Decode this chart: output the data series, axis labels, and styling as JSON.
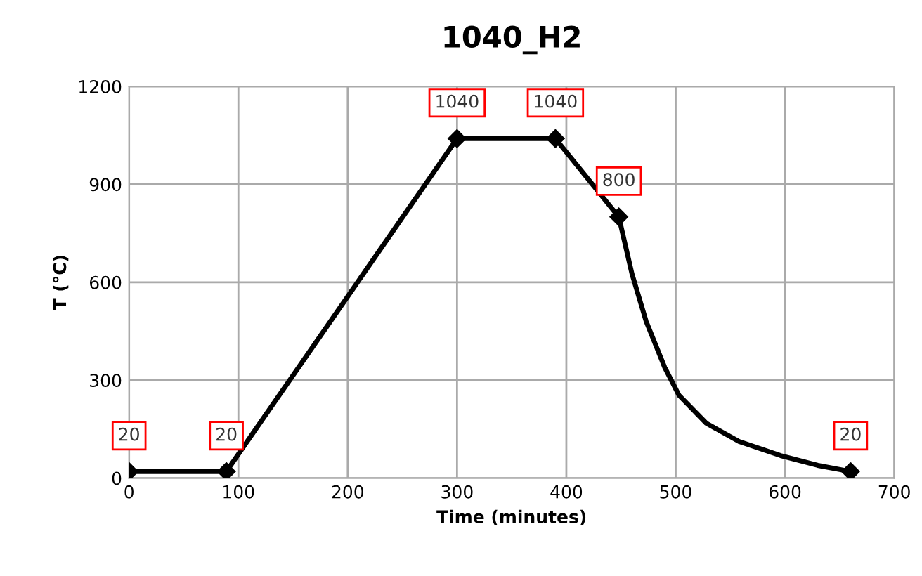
{
  "chart_data": {
    "type": "line",
    "title": "1040_H2",
    "xlabel": "Time (minutes)",
    "ylabel": "T (°C)",
    "xlim": [
      0,
      700
    ],
    "xticks": [
      0,
      100,
      200,
      300,
      400,
      500,
      600,
      700
    ],
    "ylim": [
      0,
      1200
    ],
    "yticks": [
      0,
      300,
      600,
      900,
      1200
    ],
    "grid": true,
    "marker": "diamond",
    "line_style": "solid",
    "series": [
      {
        "color": "#000000",
        "x": [
          0,
          89,
          300,
          390,
          448
        ],
        "values": [
          20,
          20,
          1040,
          1040,
          800
        ],
        "value_labels": [
          "20",
          "20",
          "1040",
          "1040",
          "800"
        ]
      },
      {
        "color": "#000000",
        "marker": "none",
        "x": [
          448,
          460,
          473,
          490,
          503,
          528,
          558,
          596,
          630,
          660
        ],
        "values": [
          800,
          626,
          480,
          339,
          254,
          168,
          112,
          69,
          39,
          20
        ]
      },
      {
        "type": "scatter",
        "color": "#000000",
        "x": [
          660
        ],
        "values": [
          20
        ],
        "value_labels": [
          "20"
        ]
      }
    ]
  }
}
